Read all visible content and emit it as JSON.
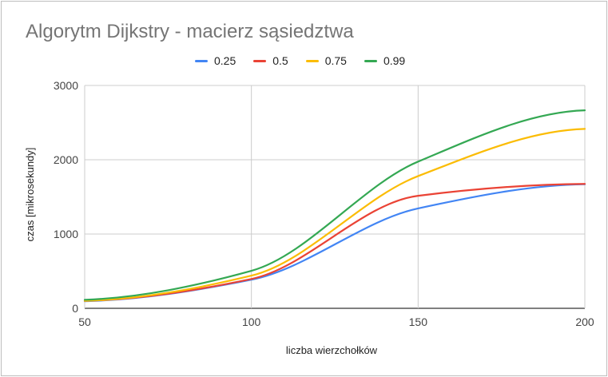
{
  "chart_data": {
    "type": "line",
    "title": "Algorytm Dijkstry - macierz sąsiedztwa",
    "xlabel": "liczba wierzchołków",
    "ylabel": "czas [mikrosekundy]",
    "xlim": [
      50,
      200
    ],
    "ylim": [
      0,
      3000
    ],
    "x_ticks": [
      "50",
      "100",
      "150",
      "200"
    ],
    "y_ticks": [
      "0",
      "1000",
      "2000",
      "3000"
    ],
    "x_tick_values": [
      50,
      100,
      150,
      200
    ],
    "y_tick_values": [
      0,
      1000,
      2000,
      3000
    ],
    "grid": true,
    "legend_position": "top",
    "x": [
      50,
      100,
      150,
      200
    ],
    "series": [
      {
        "name": "0.25",
        "color": "#4285f4",
        "values": [
          95,
          385,
          1345,
          1670
        ]
      },
      {
        "name": "0.5",
        "color": "#ea4335",
        "values": [
          100,
          395,
          1515,
          1675
        ]
      },
      {
        "name": "0.75",
        "color": "#fbbc04",
        "values": [
          100,
          440,
          1780,
          2415
        ]
      },
      {
        "name": "0.99",
        "color": "#34a853",
        "values": [
          115,
          505,
          1975,
          2665
        ]
      }
    ]
  }
}
